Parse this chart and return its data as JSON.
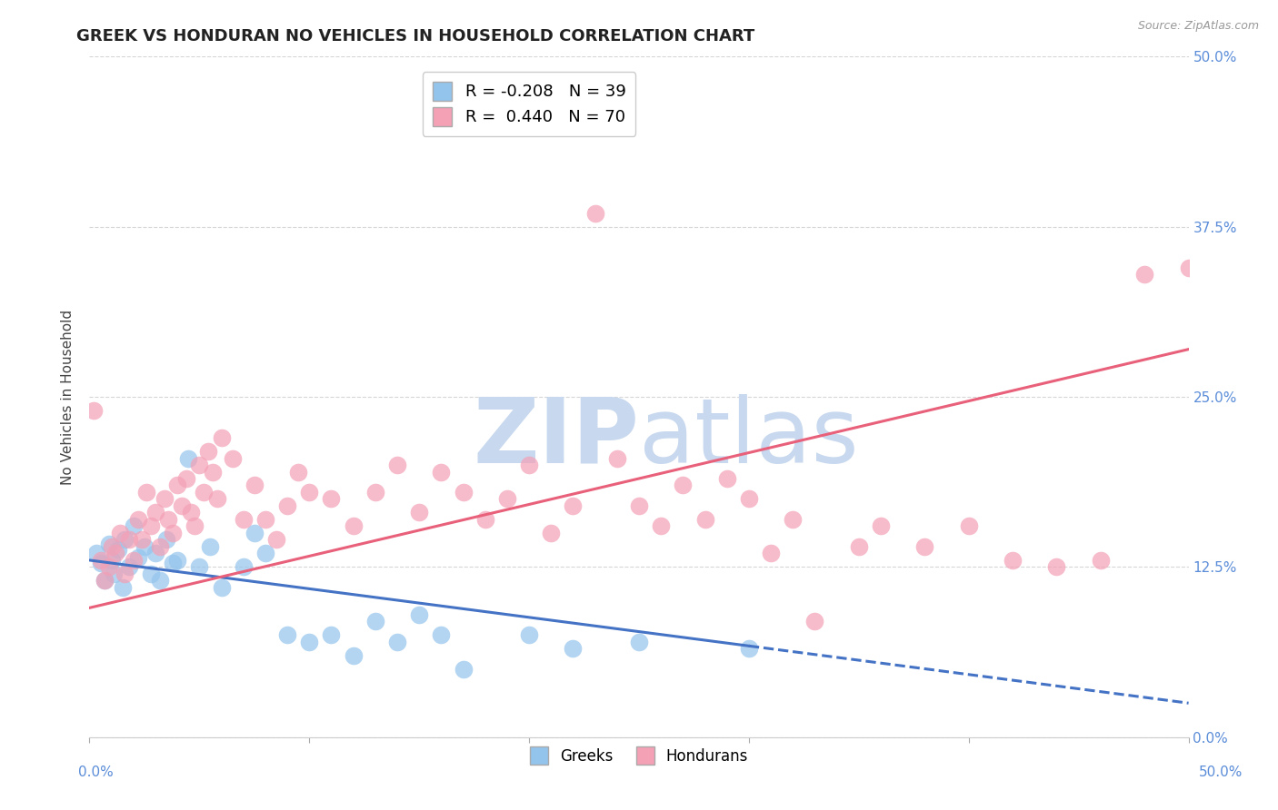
{
  "title": "GREEK VS HONDURAN NO VEHICLES IN HOUSEHOLD CORRELATION CHART",
  "source": "Source: ZipAtlas.com",
  "ylabel": "No Vehicles in Household",
  "ytick_values": [
    0.0,
    12.5,
    25.0,
    37.5,
    50.0
  ],
  "xlim": [
    0.0,
    50.0
  ],
  "ylim": [
    0.0,
    50.0
  ],
  "greek_R": -0.208,
  "greek_N": 39,
  "honduran_R": 0.44,
  "honduran_N": 70,
  "greek_color": "#93C4EC",
  "honduran_color": "#F4A0B5",
  "greek_line_color": "#4472C4",
  "honduran_line_color": "#E8607A",
  "watermark_zip": "ZIP",
  "watermark_atlas": "atlas",
  "watermark_color_zip": "#C8D8EE",
  "watermark_color_atlas": "#C8D8EE",
  "background_color": "#FFFFFF",
  "grid_color": "#CCCCCC",
  "title_fontsize": 13,
  "axis_label_fontsize": 11,
  "tick_fontsize": 11,
  "greek_line_x0": 0.0,
  "greek_line_y0": 13.0,
  "greek_line_x1": 50.0,
  "greek_line_y1": 2.5,
  "honduran_line_x0": 0.0,
  "honduran_line_y0": 9.5,
  "honduran_line_x1": 50.0,
  "honduran_line_y1": 28.5,
  "greek_scatter": [
    [
      0.3,
      13.5
    ],
    [
      0.5,
      12.8
    ],
    [
      0.7,
      11.5
    ],
    [
      0.9,
      14.2
    ],
    [
      1.0,
      13.0
    ],
    [
      1.1,
      12.0
    ],
    [
      1.3,
      13.8
    ],
    [
      1.5,
      11.0
    ],
    [
      1.6,
      14.5
    ],
    [
      1.8,
      12.5
    ],
    [
      2.0,
      15.5
    ],
    [
      2.2,
      13.2
    ],
    [
      2.5,
      14.0
    ],
    [
      2.8,
      12.0
    ],
    [
      3.0,
      13.5
    ],
    [
      3.2,
      11.5
    ],
    [
      3.5,
      14.5
    ],
    [
      3.8,
      12.8
    ],
    [
      4.0,
      13.0
    ],
    [
      4.5,
      20.5
    ],
    [
      5.0,
      12.5
    ],
    [
      5.5,
      14.0
    ],
    [
      6.0,
      11.0
    ],
    [
      7.0,
      12.5
    ],
    [
      7.5,
      15.0
    ],
    [
      8.0,
      13.5
    ],
    [
      9.0,
      7.5
    ],
    [
      10.0,
      7.0
    ],
    [
      11.0,
      7.5
    ],
    [
      12.0,
      6.0
    ],
    [
      13.0,
      8.5
    ],
    [
      14.0,
      7.0
    ],
    [
      15.0,
      9.0
    ],
    [
      16.0,
      7.5
    ],
    [
      17.0,
      5.0
    ],
    [
      20.0,
      7.5
    ],
    [
      22.0,
      6.5
    ],
    [
      25.0,
      7.0
    ],
    [
      30.0,
      6.5
    ]
  ],
  "honduran_scatter": [
    [
      0.2,
      24.0
    ],
    [
      0.5,
      13.0
    ],
    [
      0.7,
      11.5
    ],
    [
      0.9,
      12.5
    ],
    [
      1.0,
      14.0
    ],
    [
      1.2,
      13.5
    ],
    [
      1.4,
      15.0
    ],
    [
      1.6,
      12.0
    ],
    [
      1.8,
      14.5
    ],
    [
      2.0,
      13.0
    ],
    [
      2.2,
      16.0
    ],
    [
      2.4,
      14.5
    ],
    [
      2.6,
      18.0
    ],
    [
      2.8,
      15.5
    ],
    [
      3.0,
      16.5
    ],
    [
      3.2,
      14.0
    ],
    [
      3.4,
      17.5
    ],
    [
      3.6,
      16.0
    ],
    [
      3.8,
      15.0
    ],
    [
      4.0,
      18.5
    ],
    [
      4.2,
      17.0
    ],
    [
      4.4,
      19.0
    ],
    [
      4.6,
      16.5
    ],
    [
      4.8,
      15.5
    ],
    [
      5.0,
      20.0
    ],
    [
      5.2,
      18.0
    ],
    [
      5.4,
      21.0
    ],
    [
      5.6,
      19.5
    ],
    [
      5.8,
      17.5
    ],
    [
      6.0,
      22.0
    ],
    [
      6.5,
      20.5
    ],
    [
      7.0,
      16.0
    ],
    [
      7.5,
      18.5
    ],
    [
      8.0,
      16.0
    ],
    [
      8.5,
      14.5
    ],
    [
      9.0,
      17.0
    ],
    [
      9.5,
      19.5
    ],
    [
      10.0,
      18.0
    ],
    [
      11.0,
      17.5
    ],
    [
      12.0,
      15.5
    ],
    [
      13.0,
      18.0
    ],
    [
      14.0,
      20.0
    ],
    [
      15.0,
      16.5
    ],
    [
      16.0,
      19.5
    ],
    [
      17.0,
      18.0
    ],
    [
      18.0,
      16.0
    ],
    [
      19.0,
      17.5
    ],
    [
      20.0,
      20.0
    ],
    [
      21.0,
      15.0
    ],
    [
      22.0,
      17.0
    ],
    [
      23.0,
      38.5
    ],
    [
      24.0,
      20.5
    ],
    [
      25.0,
      17.0
    ],
    [
      26.0,
      15.5
    ],
    [
      27.0,
      18.5
    ],
    [
      28.0,
      16.0
    ],
    [
      29.0,
      19.0
    ],
    [
      30.0,
      17.5
    ],
    [
      31.0,
      13.5
    ],
    [
      32.0,
      16.0
    ],
    [
      33.0,
      8.5
    ],
    [
      35.0,
      14.0
    ],
    [
      36.0,
      15.5
    ],
    [
      38.0,
      14.0
    ],
    [
      40.0,
      15.5
    ],
    [
      42.0,
      13.0
    ],
    [
      44.0,
      12.5
    ],
    [
      46.0,
      13.0
    ],
    [
      48.0,
      34.0
    ],
    [
      50.0,
      34.5
    ]
  ]
}
